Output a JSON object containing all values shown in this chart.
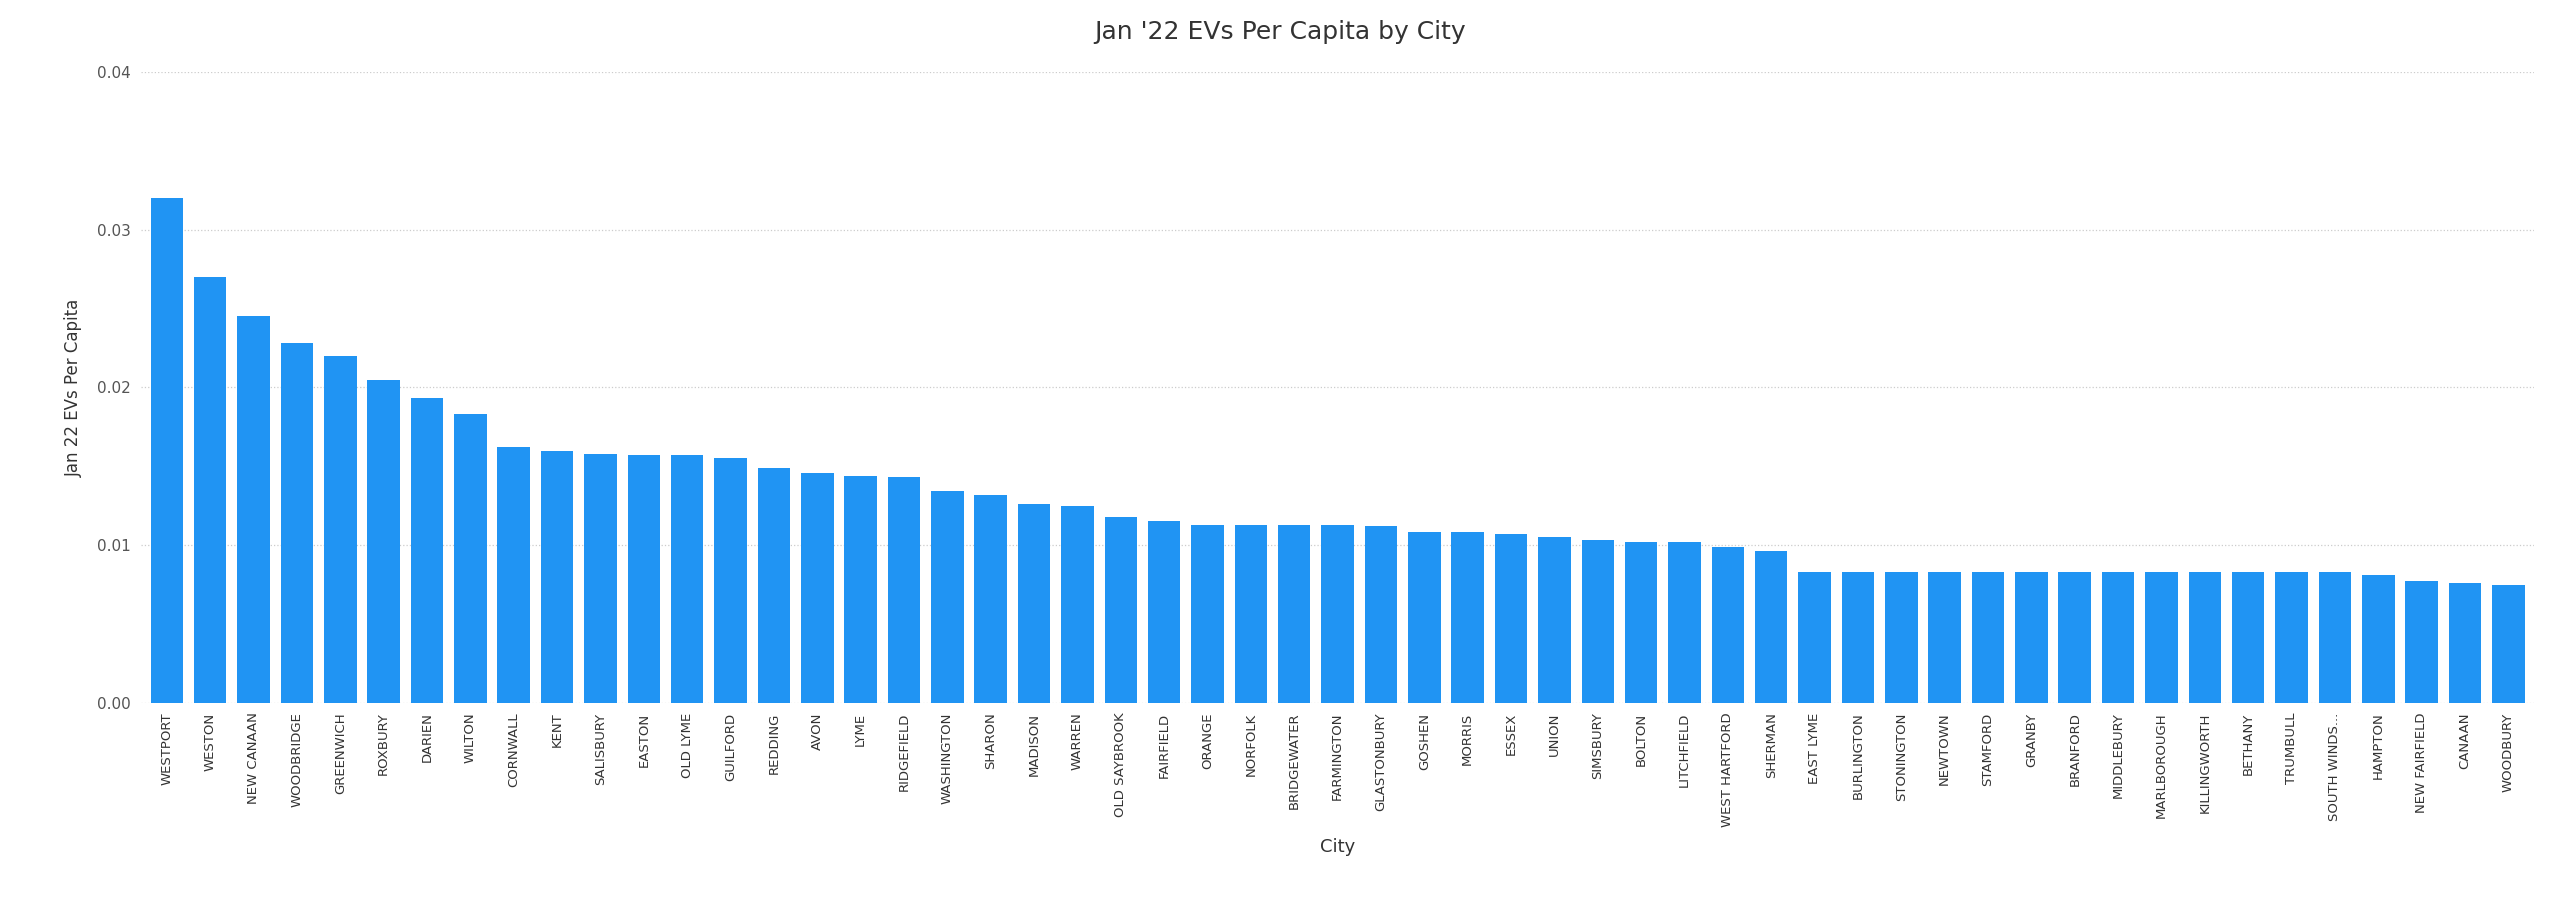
{
  "title": "Jan '22 EVs Per Capita by City",
  "xlabel": "City",
  "ylabel": "Jan 22 EVs Per Capita",
  "bar_color": "#2094F3",
  "background_color": "#ffffff",
  "title_bg_color": "#90CAF9",
  "plot_bg_color": "#ffffff",
  "ylim": [
    0,
    0.04
  ],
  "yticks": [
    0.0,
    0.01,
    0.02,
    0.03,
    0.04
  ],
  "cities": [
    "WESTPORT",
    "WESTON",
    "NEW CANAAN",
    "WOODBRIDGE",
    "GREENWICH",
    "ROXBURY",
    "DARIEN",
    "WILTON",
    "CORNWALL",
    "KENT",
    "SALISBURY",
    "EASTON",
    "OLD LYME",
    "GUILFORD",
    "REDDING",
    "AVON",
    "LYME",
    "RIDGEFIELD",
    "WASHINGTON",
    "SHARON",
    "MADISON",
    "WARREN",
    "OLD SAYBROOK",
    "FAIRFIELD",
    "ORANGE",
    "NORFOLK",
    "BRIDGEWATER",
    "FARMINGTON",
    "GLASTONBURY",
    "GOSHEN",
    "MORRIS",
    "ESSEX",
    "UNION",
    "SIMSBURY",
    "BOLTON",
    "LITCHFIELD",
    "WEST HARTFORD",
    "SHERMAN",
    "EAST LYME",
    "BURLINGTON",
    "STONINGTON",
    "NEWTOWN",
    "STAMFORD",
    "GRANBY",
    "BRANFORD",
    "MIDDLEBURY",
    "MARLBOROUGH",
    "KILLINGWORTH",
    "BETHANY",
    "TRUMBULL",
    "SOUTH WINDS...",
    "HAMPTON",
    "NEW FAIRFIELD",
    "CANAAN",
    "WOODBURY"
  ],
  "values": [
    0.032,
    0.027,
    0.0245,
    0.0228,
    0.022,
    0.0205,
    0.0193,
    0.0183,
    0.0162,
    0.016,
    0.0158,
    0.0157,
    0.0157,
    0.0155,
    0.0149,
    0.0146,
    0.0144,
    0.0143,
    0.0134,
    0.0132,
    0.0126,
    0.0125,
    0.0118,
    0.0115,
    0.0113,
    0.0113,
    0.0113,
    0.0113,
    0.0112,
    0.0108,
    0.0108,
    0.0107,
    0.0105,
    0.0103,
    0.0102,
    0.0102,
    0.0099,
    0.0096,
    0.0083,
    0.0083,
    0.0083,
    0.0083,
    0.0083,
    0.0083,
    0.0083,
    0.0083,
    0.0083,
    0.0083,
    0.0083,
    0.0083,
    0.0083,
    0.0081,
    0.0077,
    0.0076,
    0.0075
  ],
  "title_fontsize": 18,
  "xlabel_fontsize": 13,
  "ylabel_fontsize": 12,
  "tick_fontsize": 9.5,
  "ytick_fontsize": 11
}
